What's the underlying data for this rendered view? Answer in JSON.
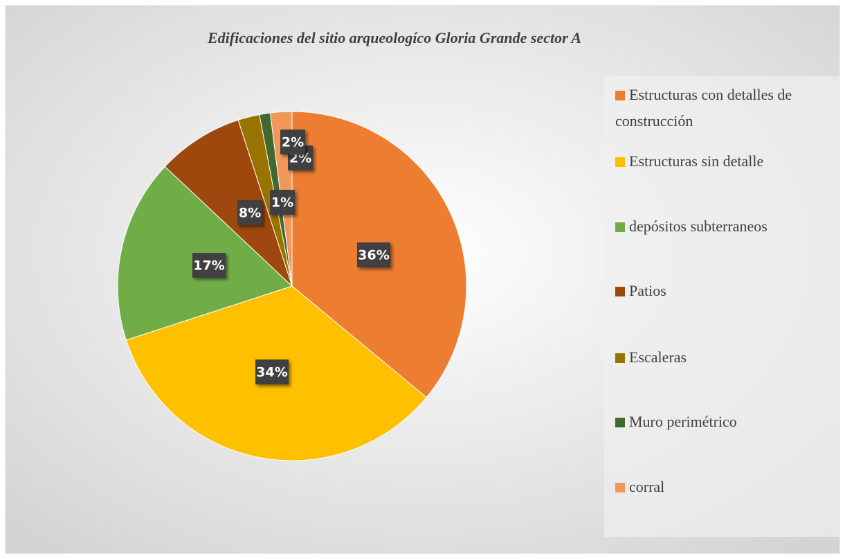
{
  "chart_data": {
    "type": "pie",
    "title": "Edificaciones del sitio arqueologíco Gloria Grande sector A",
    "categories": [
      "Estructuras con detalles de construcción",
      "Estructuras sin detalle",
      "depósitos subterraneos",
      "Patios",
      "Escaleras",
      "Muro perimétrico",
      "corral"
    ],
    "values": [
      36,
      34,
      17,
      8,
      2,
      1,
      2
    ],
    "value_labels": [
      "36%",
      "34%",
      "17%",
      "8%",
      "2%",
      "1%",
      "2%"
    ],
    "colors": [
      "#ED7D31",
      "#FFC000",
      "#70AD47",
      "#9E480E",
      "#997300",
      "#43682B",
      "#F1975A"
    ],
    "legend": "right"
  }
}
